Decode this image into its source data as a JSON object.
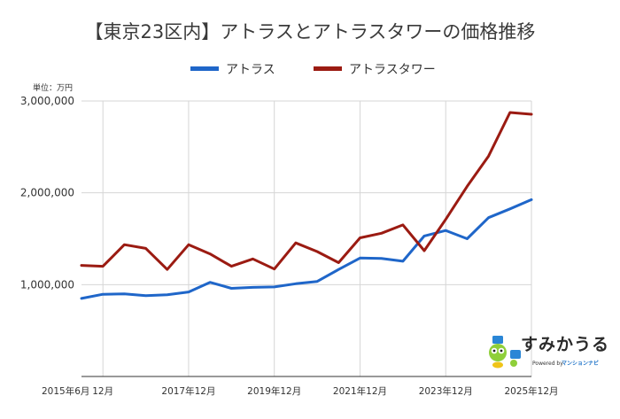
{
  "colors": {
    "atlas": "#1f66c9",
    "tower": "#9b1b12",
    "grid": "#d6d6d6",
    "brand_accent": "#1e73c8"
  },
  "chart_data": {
    "type": "line",
    "title": "【東京23区内】アトラスとアトラスタワーの価格推移",
    "unit_label": "単位：万円",
    "ylim": [
      0,
      3000000
    ],
    "yticks": [
      {
        "value": 1000000,
        "label": "1,000,000"
      },
      {
        "value": 2000000,
        "label": "2,000,000"
      },
      {
        "value": 3000000,
        "label": "3,000,000"
      }
    ],
    "xlim": [
      0,
      21
    ],
    "xticks": [
      {
        "x": 0,
        "label": "2015年6月",
        "grid": false
      },
      {
        "x": 1,
        "label": "12月",
        "grid": true
      },
      {
        "x": 5,
        "label": "2017年12月",
        "grid": true
      },
      {
        "x": 9,
        "label": "2019年12月",
        "grid": true
      },
      {
        "x": 13,
        "label": "2021年12月",
        "grid": true
      },
      {
        "x": 17,
        "label": "2023年12月",
        "grid": true
      },
      {
        "x": 21,
        "label": "2025年12月",
        "grid": true
      }
    ],
    "grid": true,
    "legend": "top-center",
    "series": [
      {
        "name": "アトラス",
        "color_key": "atlas",
        "x": [
          0,
          1,
          2,
          3,
          4,
          5,
          6,
          7,
          8,
          9,
          10,
          11,
          12,
          13,
          14,
          15,
          16,
          17,
          18,
          19,
          20,
          21
        ],
        "values": [
          850000,
          895000,
          900000,
          880000,
          890000,
          920000,
          1025000,
          960000,
          970000,
          975000,
          1010000,
          1035000,
          1165000,
          1290000,
          1285000,
          1255000,
          1530000,
          1590000,
          1500000,
          1730000,
          1825000,
          1925000
        ]
      },
      {
        "name": "アトラスタワー",
        "color_key": "tower",
        "x": [
          0,
          1,
          2,
          3,
          4,
          5,
          6,
          7,
          8,
          9,
          10,
          11,
          12,
          13,
          14,
          15,
          16,
          17,
          18,
          19,
          20,
          21
        ],
        "values": [
          1210000,
          1200000,
          1435000,
          1395000,
          1165000,
          1435000,
          1335000,
          1200000,
          1280000,
          1170000,
          1455000,
          1360000,
          1240000,
          1510000,
          1560000,
          1650000,
          1370000,
          1710000,
          2070000,
          2400000,
          2875000,
          2855000
        ]
      }
    ]
  },
  "brand": {
    "name": "すみかうる",
    "powered_by": "Powered by",
    "partner": "マンションナビ"
  }
}
